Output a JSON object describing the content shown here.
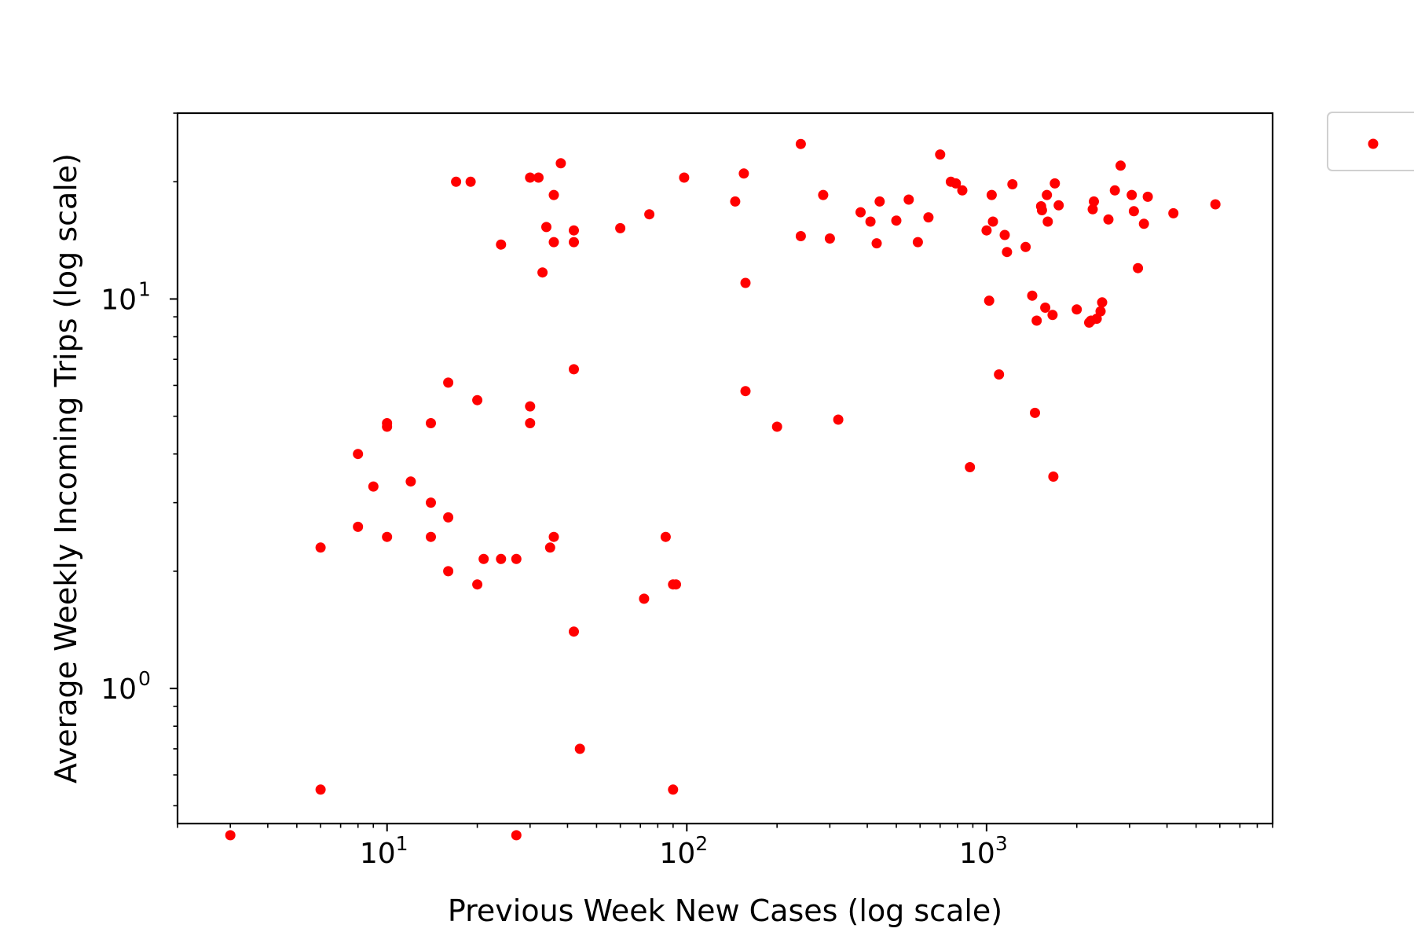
{
  "chart_data": {
    "type": "scatter",
    "xlabel": "Previous Week New Cases (log scale)",
    "ylabel": "Average Weekly Incoming Trips (log scale)",
    "x_scale": "log",
    "y_scale": "log",
    "xlim": [
      2,
      9000
    ],
    "ylim": [
      0.45,
      30
    ],
    "x_ticks": [
      {
        "base": "10",
        "exp": "1"
      },
      {
        "base": "10",
        "exp": "2"
      },
      {
        "base": "10",
        "exp": "3"
      }
    ],
    "y_ticks": [
      {
        "base": "10",
        "exp": "0"
      },
      {
        "base": "10",
        "exp": "1"
      }
    ],
    "grid": false,
    "legend": {
      "position": "outside-top-right",
      "label": ""
    },
    "marker_color": "#ff0000",
    "series": [
      {
        "points": [
          [
            3,
            0.42
          ],
          [
            6,
            0.55
          ],
          [
            6,
            2.3
          ],
          [
            8,
            4.0
          ],
          [
            8,
            2.6
          ],
          [
            9,
            3.3
          ],
          [
            10,
            4.7
          ],
          [
            10,
            4.8
          ],
          [
            10,
            2.45
          ],
          [
            12,
            3.4
          ],
          [
            14,
            4.8
          ],
          [
            14,
            3.0
          ],
          [
            14,
            2.45
          ],
          [
            16,
            6.1
          ],
          [
            16,
            2.75
          ],
          [
            16,
            2.0
          ],
          [
            17,
            20.0
          ],
          [
            19,
            20.0
          ],
          [
            20,
            5.5
          ],
          [
            20,
            1.85
          ],
          [
            21,
            2.15
          ],
          [
            24,
            13.8
          ],
          [
            24,
            2.15
          ],
          [
            27,
            2.15
          ],
          [
            27,
            0.42
          ],
          [
            30,
            5.3
          ],
          [
            30,
            4.8
          ],
          [
            30,
            20.5
          ],
          [
            32,
            20.5
          ],
          [
            33,
            11.7
          ],
          [
            34,
            15.3
          ],
          [
            35,
            2.3
          ],
          [
            36,
            18.5
          ],
          [
            36,
            2.45
          ],
          [
            36,
            14.0
          ],
          [
            38,
            22.3
          ],
          [
            42,
            15.0
          ],
          [
            42,
            14.0
          ],
          [
            42,
            6.6
          ],
          [
            42,
            1.4
          ],
          [
            44,
            0.7
          ],
          [
            60,
            15.2
          ],
          [
            72,
            1.7
          ],
          [
            75,
            16.5
          ],
          [
            85,
            2.45
          ],
          [
            90,
            1.85
          ],
          [
            90,
            0.55
          ],
          [
            92,
            1.85
          ],
          [
            98,
            20.5
          ],
          [
            145,
            17.8
          ],
          [
            155,
            21.0
          ],
          [
            157,
            11.0
          ],
          [
            157,
            5.8
          ],
          [
            200,
            4.7
          ],
          [
            240,
            25.0
          ],
          [
            240,
            14.5
          ],
          [
            285,
            18.5
          ],
          [
            300,
            14.3
          ],
          [
            320,
            4.9
          ],
          [
            380,
            16.7
          ],
          [
            410,
            15.8
          ],
          [
            430,
            13.9
          ],
          [
            440,
            17.8
          ],
          [
            500,
            15.9
          ],
          [
            550,
            18.0
          ],
          [
            590,
            14.0
          ],
          [
            640,
            16.2
          ],
          [
            700,
            23.5
          ],
          [
            760,
            20.0
          ],
          [
            790,
            19.8
          ],
          [
            830,
            19.0
          ],
          [
            880,
            3.7
          ],
          [
            1000,
            15.0
          ],
          [
            1020,
            9.9
          ],
          [
            1040,
            18.5
          ],
          [
            1050,
            15.8
          ],
          [
            1100,
            6.4
          ],
          [
            1150,
            14.6
          ],
          [
            1170,
            13.2
          ],
          [
            1220,
            19.7
          ],
          [
            1350,
            13.6
          ],
          [
            1420,
            10.2
          ],
          [
            1450,
            5.1
          ],
          [
            1470,
            8.8
          ],
          [
            1520,
            17.3
          ],
          [
            1530,
            16.9
          ],
          [
            1570,
            9.5
          ],
          [
            1590,
            18.5
          ],
          [
            1600,
            15.8
          ],
          [
            1660,
            9.1
          ],
          [
            1670,
            3.5
          ],
          [
            1690,
            19.8
          ],
          [
            1740,
            17.4
          ],
          [
            2000,
            9.4
          ],
          [
            2200,
            8.7
          ],
          [
            2230,
            8.8
          ],
          [
            2260,
            17.0
          ],
          [
            2280,
            17.8
          ],
          [
            2330,
            8.9
          ],
          [
            2400,
            9.3
          ],
          [
            2430,
            9.8
          ],
          [
            2550,
            16.0
          ],
          [
            2680,
            19.0
          ],
          [
            2800,
            22.0
          ],
          [
            3050,
            18.5
          ],
          [
            3100,
            16.8
          ],
          [
            3200,
            12.0
          ],
          [
            3350,
            15.6
          ],
          [
            3450,
            18.3
          ],
          [
            4200,
            16.6
          ],
          [
            5800,
            17.5
          ]
        ]
      }
    ]
  }
}
